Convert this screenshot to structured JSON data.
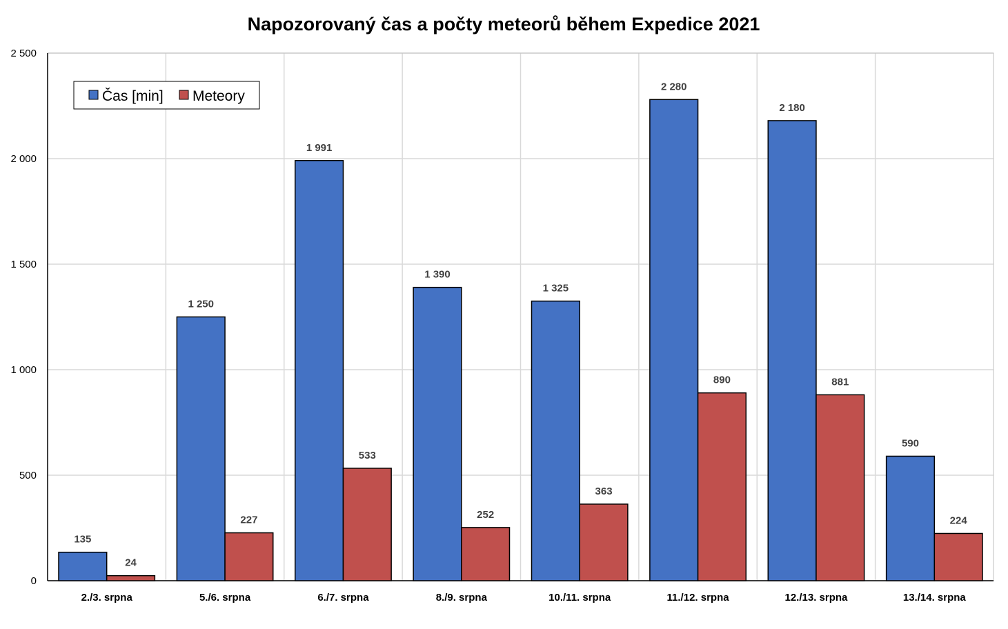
{
  "chart_data": {
    "type": "bar",
    "title": "Napozorovaný čas a počty meteorů během Expedice 2021",
    "xlabel": "",
    "ylabel": "",
    "categories": [
      "2./3. srpna",
      "5./6. srpna",
      "6./7. srpna",
      "8./9. srpna",
      "10./11. srpna",
      "11./12. srpna",
      "12./13. srpna",
      "13./14. srpna"
    ],
    "series": [
      {
        "name": "Čas [min]",
        "color": "#4472C4",
        "values": [
          135,
          1250,
          1991,
          1390,
          1325,
          2280,
          2180,
          590
        ],
        "value_labels": [
          "135",
          "1 250",
          "1 991",
          "1 390",
          "1 325",
          "2 280",
          "2 180",
          "590"
        ]
      },
      {
        "name": "Meteory",
        "color": "#C0504D",
        "values": [
          24,
          227,
          533,
          252,
          363,
          890,
          881,
          224
        ],
        "value_labels": [
          "24",
          "227",
          "533",
          "252",
          "363",
          "890",
          "881",
          "224"
        ]
      }
    ],
    "ylim": [
      0,
      2500
    ],
    "yticks": [
      0,
      500,
      1000,
      1500,
      2000,
      2500
    ],
    "ytick_labels": [
      "0",
      "500",
      "1 000",
      "1 500",
      "2 000",
      "2 500"
    ],
    "grid": true,
    "legend_position": "top-left"
  }
}
